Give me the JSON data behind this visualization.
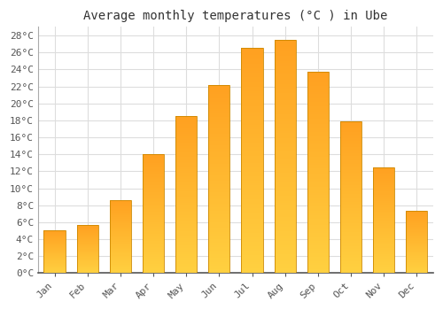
{
  "title": "Average monthly temperatures (°C ) in Ube",
  "months": [
    "Jan",
    "Feb",
    "Mar",
    "Apr",
    "May",
    "Jun",
    "Jul",
    "Aug",
    "Sep",
    "Oct",
    "Nov",
    "Dec"
  ],
  "temperatures": [
    5.1,
    5.7,
    8.6,
    14.0,
    18.5,
    22.2,
    26.5,
    27.5,
    23.7,
    17.9,
    12.5,
    7.4
  ],
  "bar_color_bottom": "#FFD040",
  "bar_color_top": "#FFA020",
  "bar_edge_color": "#CC8800",
  "ylim": [
    0,
    29
  ],
  "yticks": [
    0,
    2,
    4,
    6,
    8,
    10,
    12,
    14,
    16,
    18,
    20,
    22,
    24,
    26,
    28
  ],
  "background_color": "#ffffff",
  "grid_color": "#dddddd",
  "title_fontsize": 10,
  "tick_fontsize": 8,
  "font_family": "monospace"
}
